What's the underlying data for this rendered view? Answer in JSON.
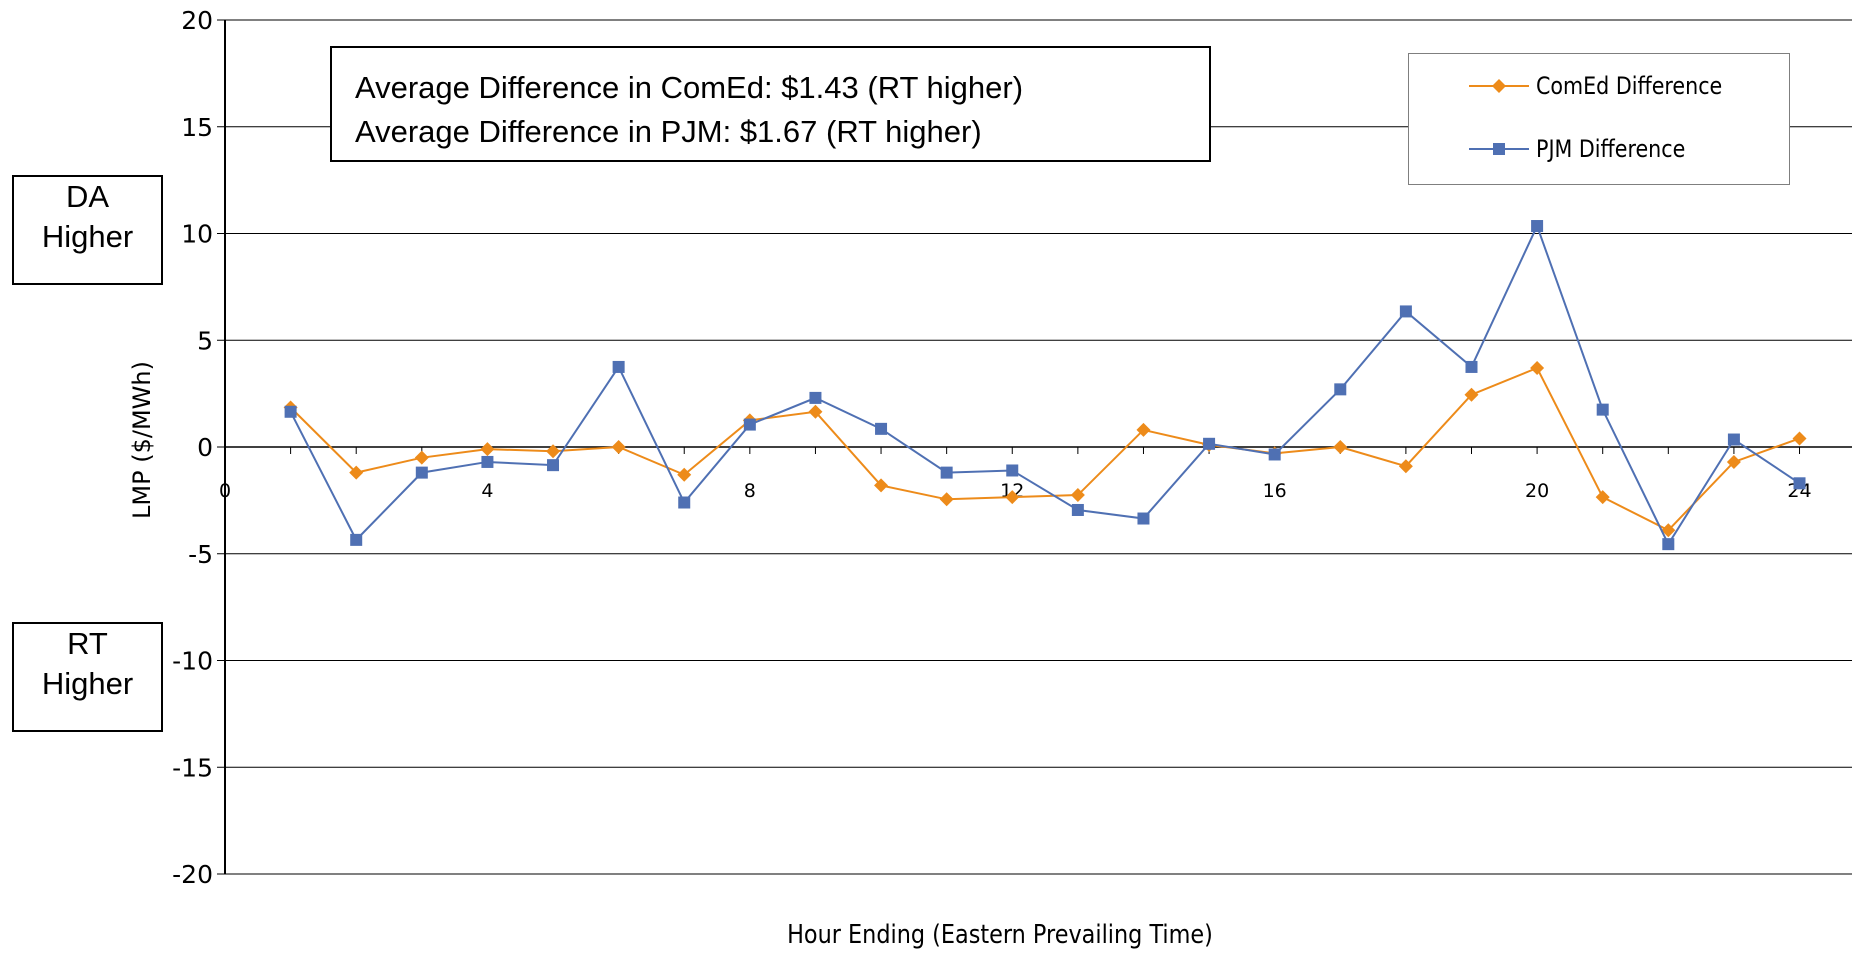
{
  "chart_data": {
    "type": "line",
    "title": "",
    "xlabel": "Hour Ending (Eastern Prevailing Time)",
    "ylabel": "LMP ($/MWh)",
    "xlim": [
      0,
      24.8
    ],
    "ylim": [
      -20,
      20
    ],
    "x_ticks": [
      0,
      4,
      8,
      12,
      16,
      20,
      24
    ],
    "y_ticks": [
      20,
      15,
      10,
      5,
      0,
      -5,
      -10,
      -15,
      -20
    ],
    "grid": "horizontal",
    "legend_position": "top-right",
    "x": [
      1,
      2,
      3,
      4,
      5,
      6,
      7,
      8,
      9,
      10,
      11,
      12,
      13,
      14,
      15,
      16,
      17,
      18,
      19,
      20,
      21,
      22,
      23,
      24
    ],
    "series": [
      {
        "name": "ComEd Difference",
        "color": "#ED8B1A",
        "marker": "diamond",
        "values": [
          1.85,
          -1.2,
          -0.5,
          -0.1,
          -0.2,
          0.0,
          -1.3,
          1.25,
          1.65,
          -1.8,
          -2.45,
          -2.35,
          -2.25,
          0.8,
          0.1,
          -0.3,
          0.0,
          -0.9,
          2.45,
          3.7,
          -2.35,
          -3.9,
          -0.7,
          0.4
        ]
      },
      {
        "name": "PJM Difference",
        "color": "#4F70B3",
        "marker": "square",
        "values": [
          1.65,
          -4.35,
          -1.2,
          -0.7,
          -0.85,
          3.75,
          -2.6,
          1.05,
          2.3,
          0.85,
          -1.2,
          -1.1,
          -2.95,
          -3.35,
          0.15,
          -0.35,
          2.7,
          6.35,
          3.75,
          10.35,
          1.75,
          -4.55,
          0.35,
          -1.7
        ]
      }
    ],
    "annotations": {
      "da_label": "DA\nHigher",
      "rt_label": "RT\nHigher",
      "avg_lines": [
        "Average Difference in ComEd: $1.43 (RT higher)",
        "Average Difference in PJM: $1.67 (RT higher)"
      ]
    }
  }
}
